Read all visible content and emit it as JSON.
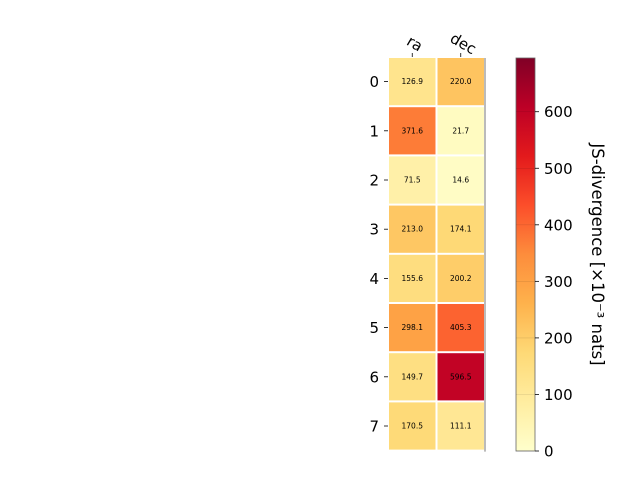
{
  "chart_data": {
    "type": "heatmap",
    "columns": [
      "ra",
      "dec"
    ],
    "rows": [
      "0",
      "1",
      "2",
      "3",
      "4",
      "5",
      "6",
      "7"
    ],
    "values": [
      [
        126.9,
        220.0
      ],
      [
        371.6,
        21.7
      ],
      [
        71.5,
        14.6
      ],
      [
        213.0,
        174.1
      ],
      [
        155.6,
        200.2
      ],
      [
        298.1,
        405.3
      ],
      [
        149.7,
        596.5
      ],
      [
        170.5,
        111.1
      ]
    ],
    "value_labels": [
      [
        "126.9",
        "220.0"
      ],
      [
        "371.6",
        "21.7"
      ],
      [
        "71.5",
        "14.6"
      ],
      [
        "213.0",
        "174.1"
      ],
      [
        "155.6",
        "200.2"
      ],
      [
        "298.1",
        "405.3"
      ],
      [
        "149.7",
        "596.5"
      ],
      [
        "170.5",
        "111.1"
      ]
    ],
    "colorbar": {
      "label": "JS-divergence [×10⁻³ nats]",
      "vmin": 0,
      "vmax": 695,
      "ticks": [
        0,
        100,
        200,
        300,
        400,
        500,
        600
      ],
      "colormap": "YlOrRd",
      "colormap_stops": [
        "#ffffcc",
        "#ffeda0",
        "#fed976",
        "#feb24c",
        "#fd8d3c",
        "#fc4e2a",
        "#e31a1c",
        "#bd0026",
        "#800026"
      ]
    },
    "grid": false,
    "cell_gap_color": "#ffffff"
  }
}
